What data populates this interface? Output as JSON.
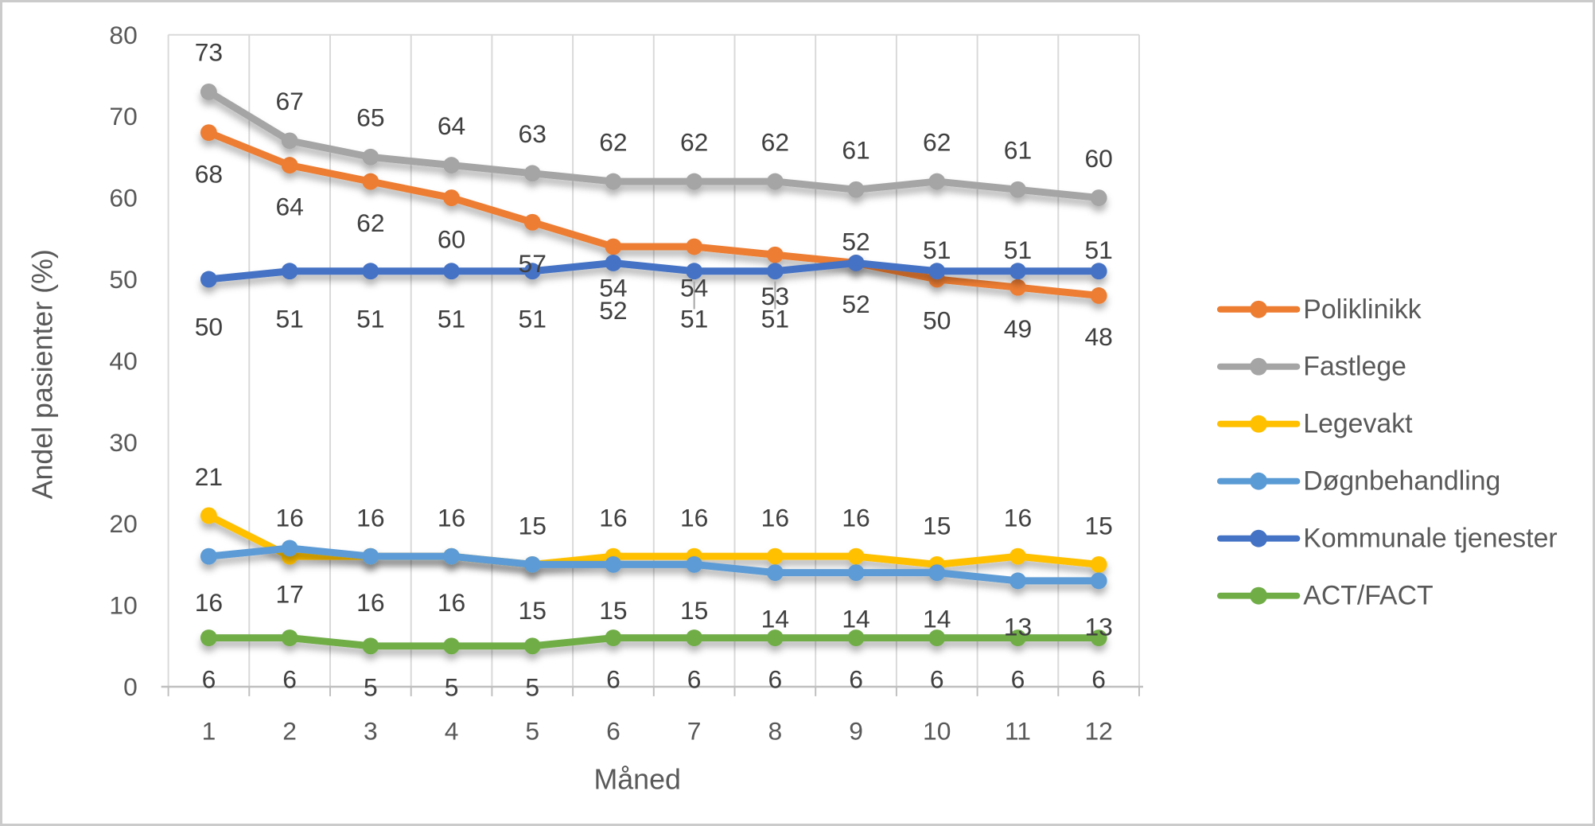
{
  "chart_data": {
    "type": "line",
    "title": "",
    "xlabel": "Måned",
    "ylabel": "Andel pasienter (%)",
    "x": [
      1,
      2,
      3,
      4,
      5,
      6,
      7,
      8,
      9,
      10,
      11,
      12
    ],
    "ylim": [
      0,
      80
    ],
    "yticks": [
      0,
      10,
      20,
      30,
      40,
      50,
      60,
      70,
      80
    ],
    "grid": "vertical-major-only",
    "legend_position": "right",
    "series": [
      {
        "name": "Poliklinikk",
        "color": "#ED7D31",
        "values": [
          68,
          64,
          62,
          60,
          57,
          54,
          54,
          53,
          52,
          50,
          49,
          48
        ],
        "label_position": "below"
      },
      {
        "name": "Fastlege",
        "color": "#A5A5A5",
        "values": [
          73,
          67,
          65,
          64,
          63,
          62,
          62,
          62,
          61,
          62,
          61,
          60
        ],
        "label_position": "above"
      },
      {
        "name": "Legevakt",
        "color": "#FFC000",
        "values": [
          21,
          16,
          16,
          16,
          15,
          16,
          16,
          16,
          16,
          15,
          16,
          15
        ],
        "label_position": "above"
      },
      {
        "name": "Døgnbehandling",
        "color": "#5B9BD5",
        "values": [
          16,
          17,
          16,
          16,
          15,
          15,
          15,
          14,
          14,
          14,
          13,
          13
        ],
        "label_position": "below"
      },
      {
        "name": "Kommunale tjenester",
        "color": "#4472C4",
        "values": [
          50,
          51,
          51,
          51,
          51,
          52,
          51,
          51,
          52,
          51,
          51,
          51
        ],
        "label_position": "below",
        "label_position_overrides": {
          "9": "above",
          "10": "above",
          "11": "above",
          "12": "above"
        }
      },
      {
        "name": "ACT/FACT",
        "color": "#70AD47",
        "values": [
          6,
          6,
          5,
          5,
          5,
          6,
          6,
          6,
          6,
          6,
          6,
          6
        ],
        "label_position": "below"
      }
    ]
  }
}
